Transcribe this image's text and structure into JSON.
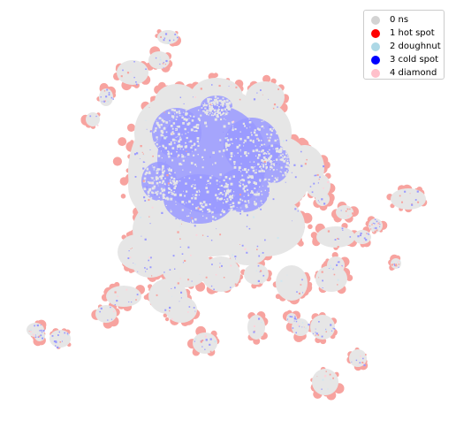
{
  "legend": {
    "items": [
      {
        "label": "0 ns",
        "color": "#d3d3d3"
      },
      {
        "label": "1 hot spot",
        "color": "#ff0000"
      },
      {
        "label": "2 doughnut",
        "color": "#add8e6"
      },
      {
        "label": "3 cold spot",
        "color": "#0000ff"
      },
      {
        "label": "4 diamond",
        "color": "#ffc0cb"
      }
    ]
  },
  "map_colors": {
    "ns_fill": "#e6e6e6",
    "hot_fill": "#f7a39f",
    "cold_fill": "#9999ff",
    "doughnut_fill": "#cfe6f0",
    "diamond_fill": "#ffd2da"
  }
}
